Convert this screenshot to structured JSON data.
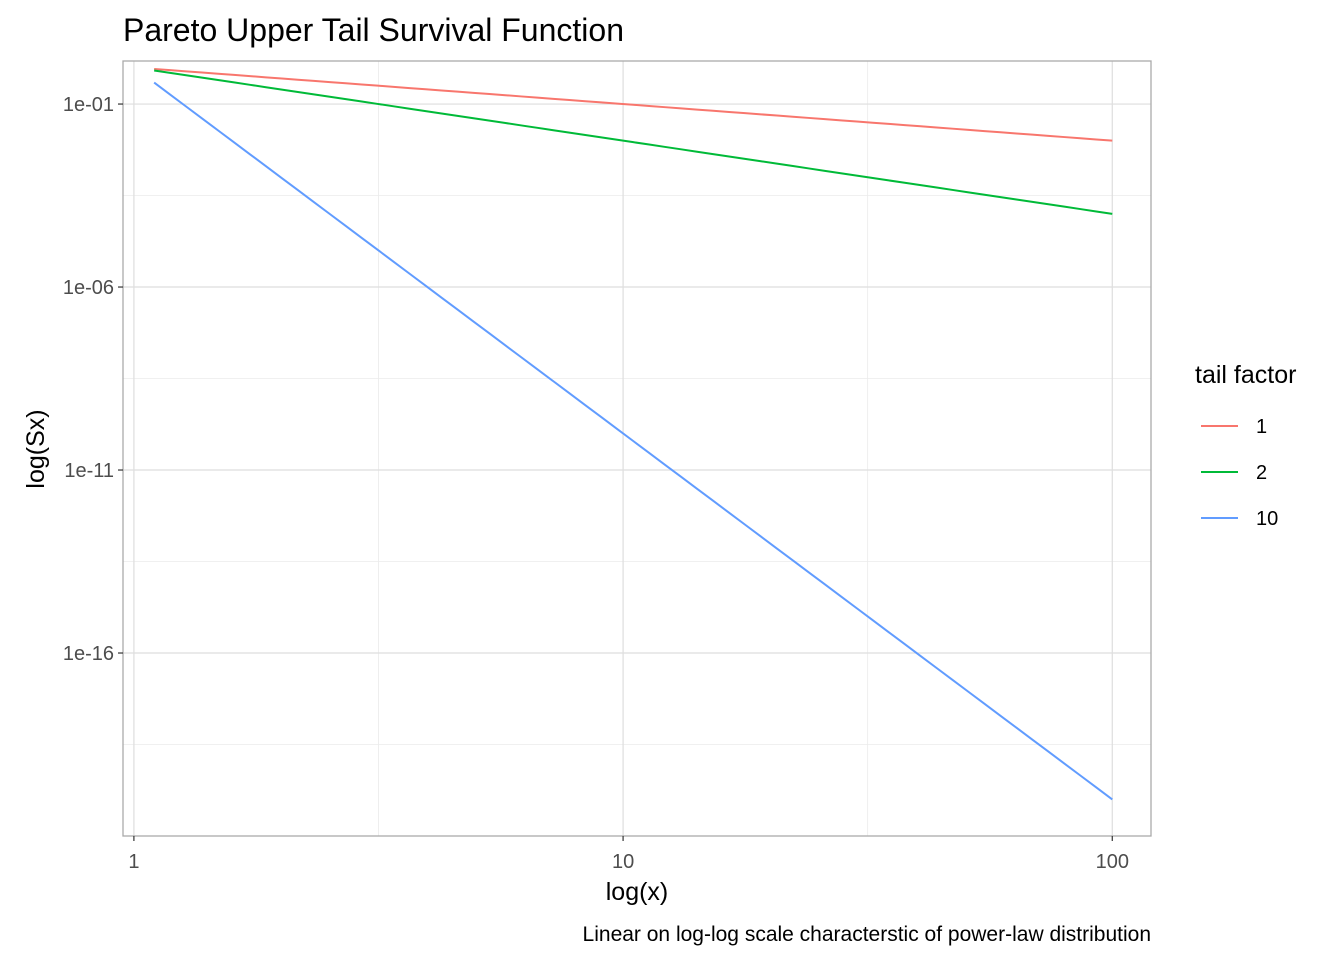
{
  "chart_data": {
    "type": "line",
    "title": "Pareto Upper Tail Survival Function",
    "xlabel": "log(x)",
    "ylabel": "log(Sx)",
    "caption": "Linear on log-log scale characterstic of power-law distribution",
    "x_scale": "log10",
    "y_scale": "log10",
    "xlim": [
      0.95,
      120
    ],
    "ylim": [
      1e-21,
      1.5
    ],
    "x_ticks": [
      1,
      10,
      100
    ],
    "x_tick_labels": [
      "1",
      "10",
      "100"
    ],
    "y_ticks": [
      0.1,
      1e-06,
      1e-11,
      1e-16
    ],
    "y_tick_labels": [
      "1e-01",
      "1e-06",
      "1e-11",
      "1e-16"
    ],
    "grid": true,
    "legend": {
      "title": "tail factor",
      "position": "right"
    },
    "series": [
      {
        "name": "1",
        "color": "#F8766D",
        "alpha": 1,
        "x_min": 1.1,
        "x_max": 100,
        "xm": 1
      },
      {
        "name": "2",
        "color": "#00BA38",
        "alpha": 2,
        "x_min": 1.1,
        "x_max": 100,
        "xm": 1
      },
      {
        "name": "10",
        "color": "#619CFF",
        "alpha": 10,
        "x_min": 1.1,
        "x_max": 100,
        "xm": 1
      }
    ]
  }
}
